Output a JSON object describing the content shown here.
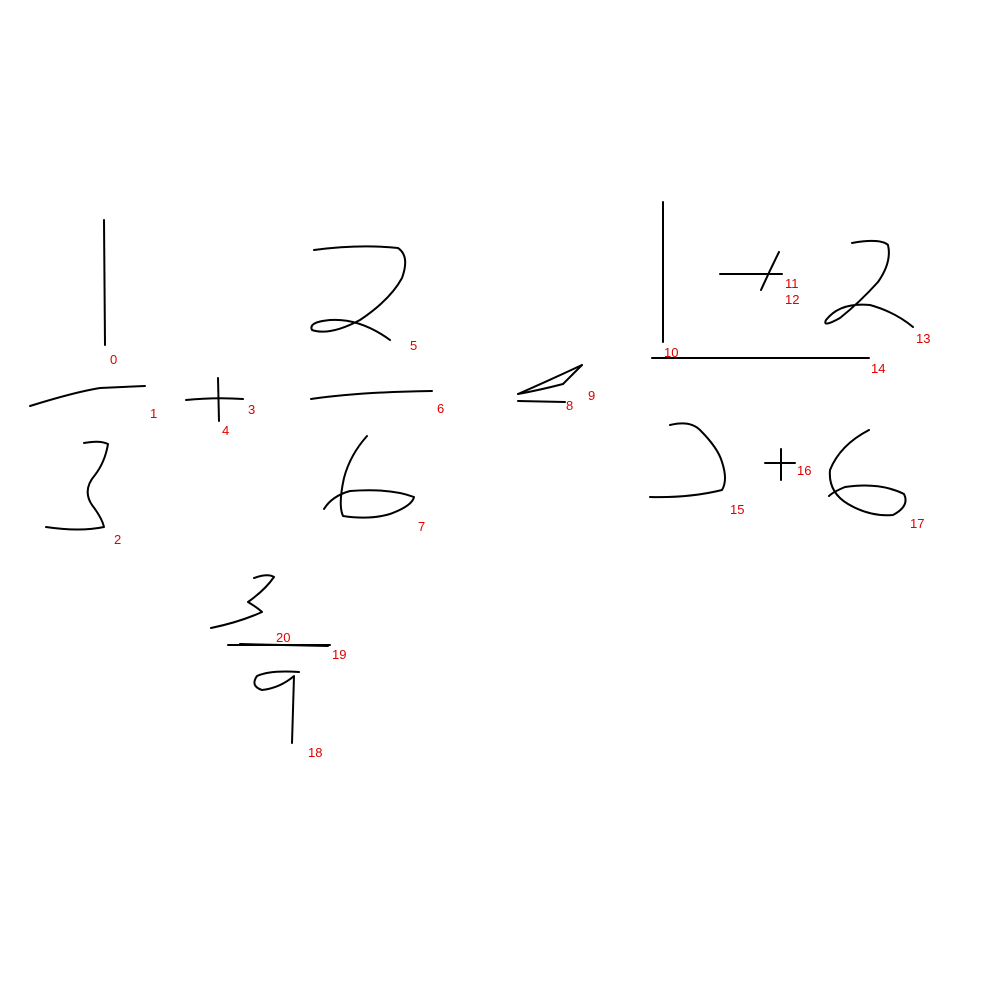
{
  "ink_color": "#000000",
  "label_color": "#e00000",
  "strokes": [
    {
      "id": "0",
      "glyph": "digit-one"
    },
    {
      "id": "1",
      "glyph": "fraction-bar"
    },
    {
      "id": "2",
      "glyph": "digit-three"
    },
    {
      "id": "3",
      "glyph": "plus-horizontal"
    },
    {
      "id": "4",
      "glyph": "plus-vertical"
    },
    {
      "id": "5",
      "glyph": "digit-two"
    },
    {
      "id": "6",
      "glyph": "fraction-bar"
    },
    {
      "id": "7",
      "glyph": "digit-six"
    },
    {
      "id": "8",
      "glyph": "equals-lower"
    },
    {
      "id": "9",
      "glyph": "equals-upper"
    },
    {
      "id": "10",
      "glyph": "digit-one"
    },
    {
      "id": "11",
      "glyph": "plus-horizontal"
    },
    {
      "id": "12",
      "glyph": "plus-vertical"
    },
    {
      "id": "13",
      "glyph": "digit-two"
    },
    {
      "id": "14",
      "glyph": "fraction-bar"
    },
    {
      "id": "15",
      "glyph": "digit-three"
    },
    {
      "id": "16",
      "glyph": "plus"
    },
    {
      "id": "17",
      "glyph": "digit-six"
    },
    {
      "id": "18",
      "glyph": "digit-nine"
    },
    {
      "id": "19",
      "glyph": "fraction-bar"
    },
    {
      "id": "20",
      "glyph": "digit-three"
    }
  ]
}
